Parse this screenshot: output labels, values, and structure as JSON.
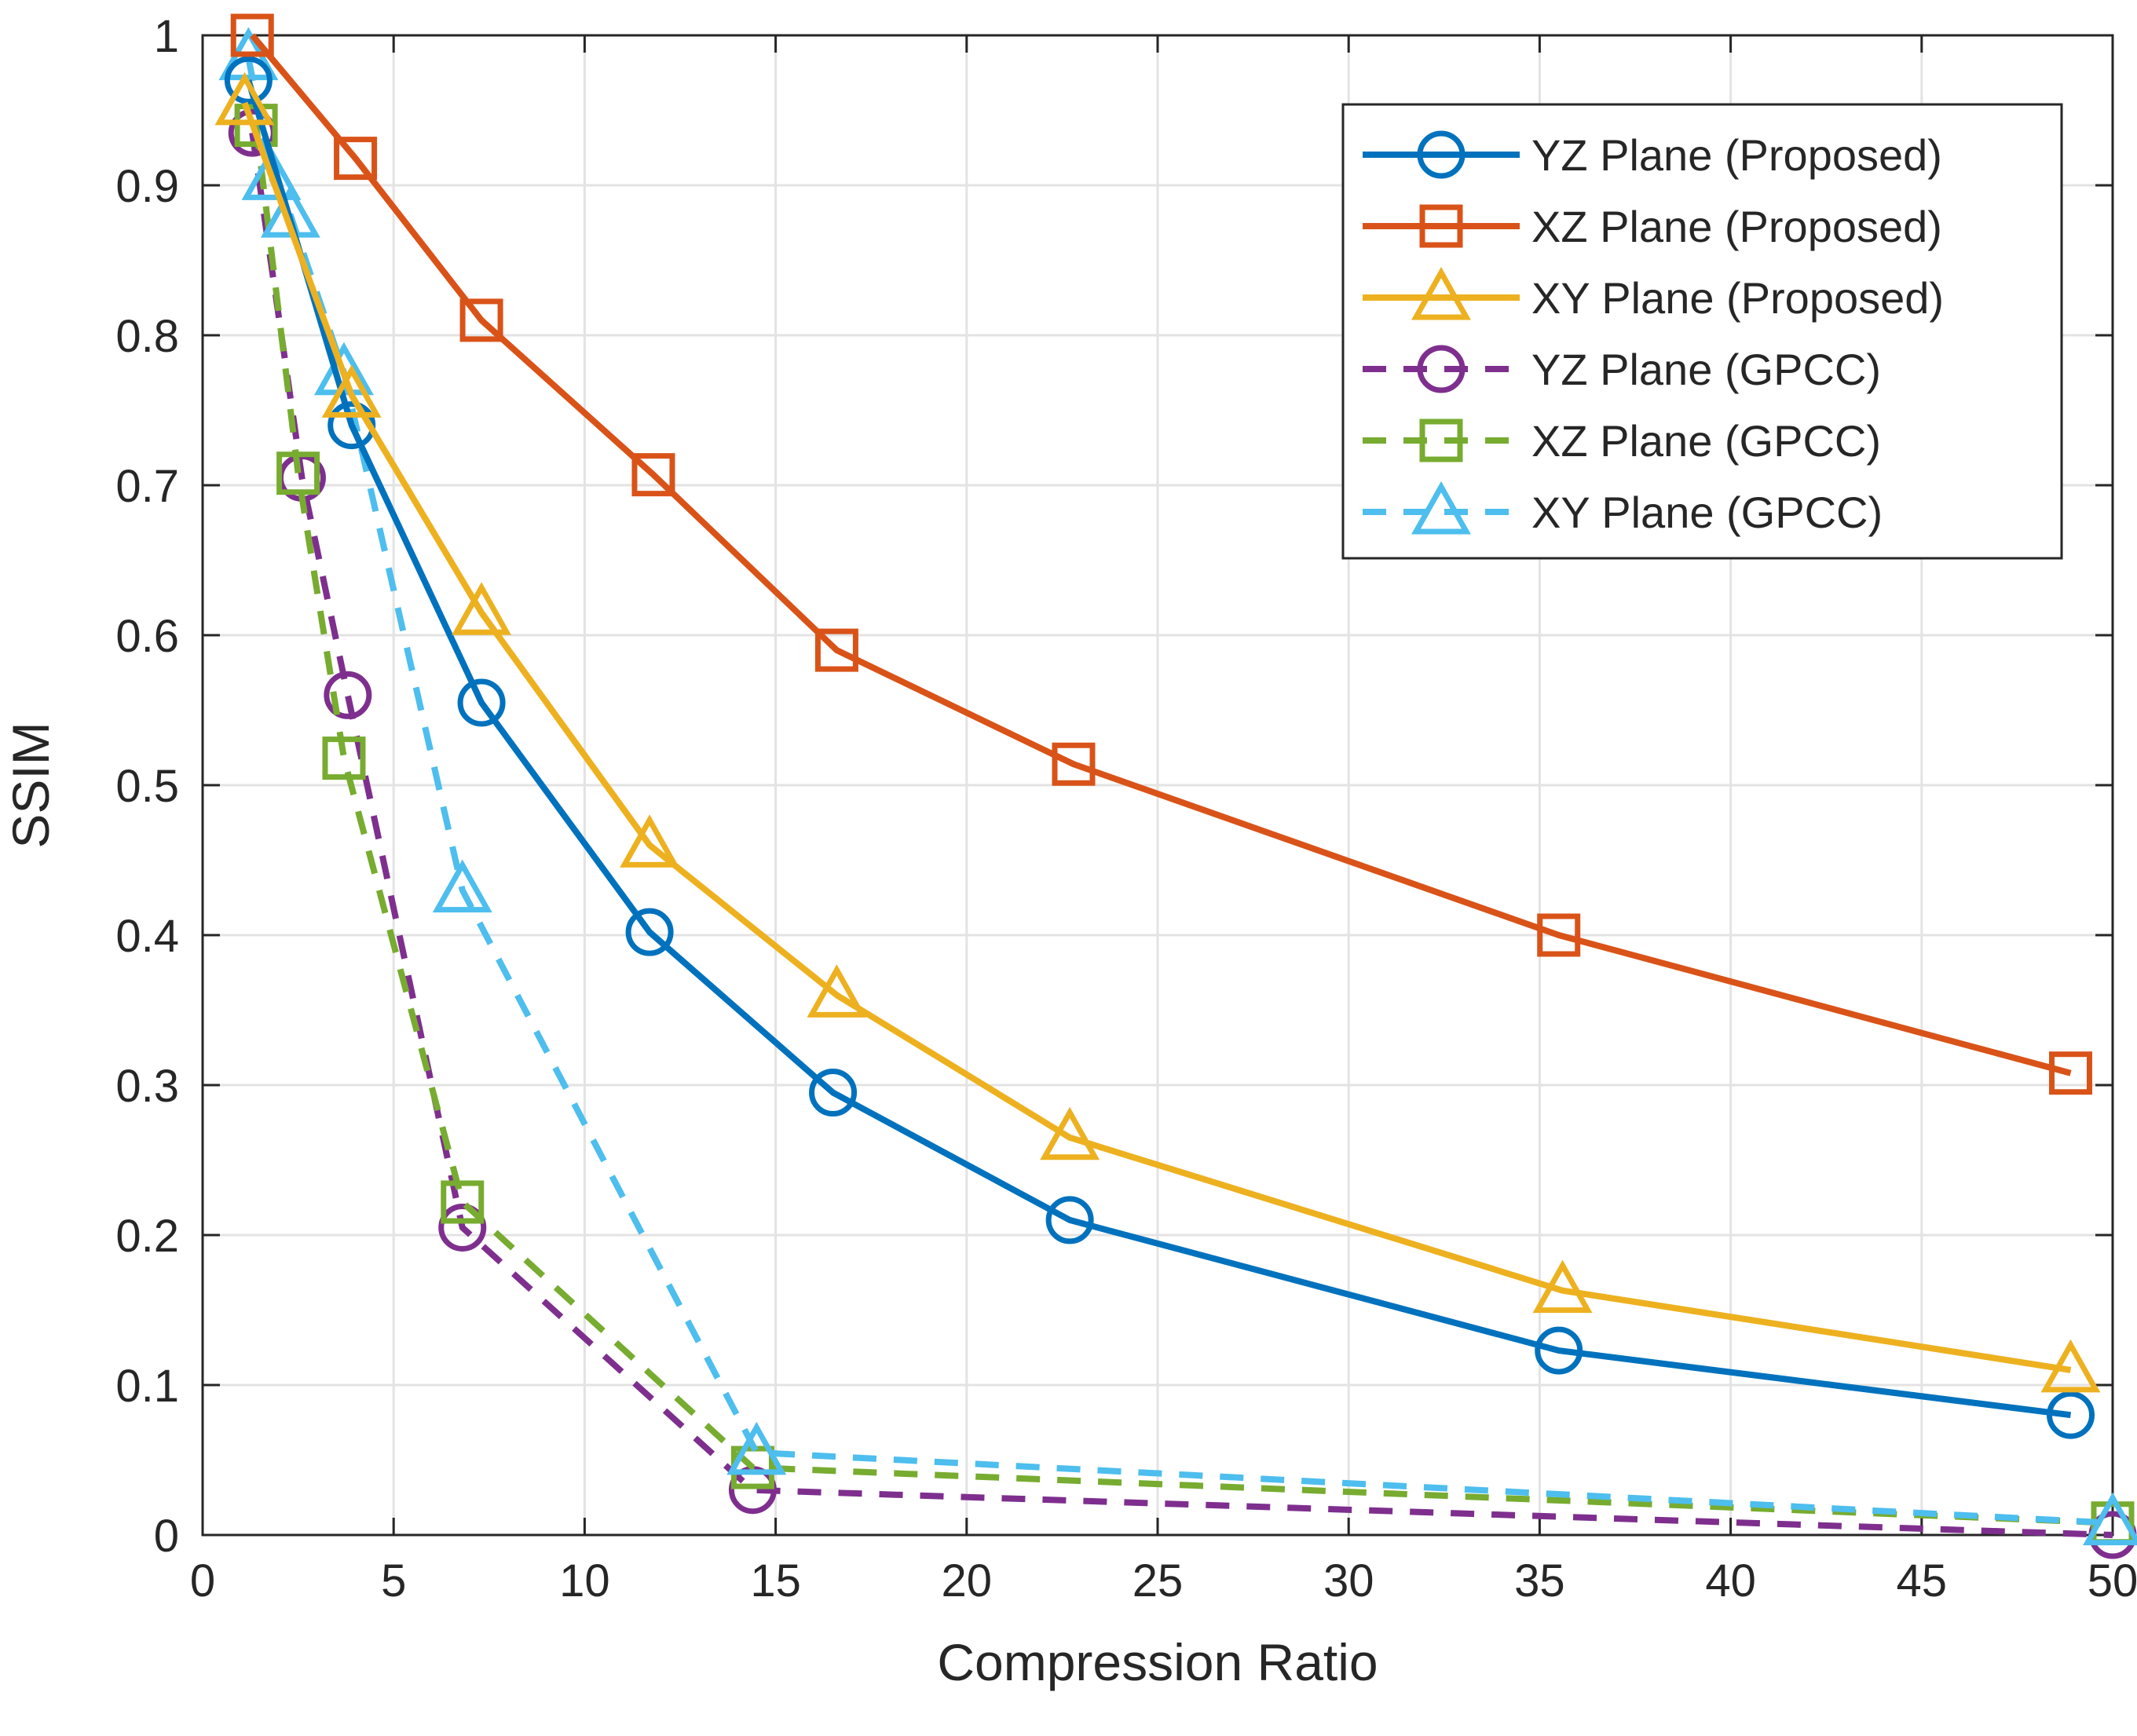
{
  "chart_data": {
    "type": "line",
    "title": "",
    "xlabel": "Compression Ratio",
    "ylabel": "SSIM",
    "xlim": [
      0,
      50
    ],
    "ylim": [
      0,
      1
    ],
    "xticks": [
      0,
      5,
      10,
      15,
      20,
      25,
      30,
      35,
      40,
      45,
      50
    ],
    "yticks": [
      0,
      0.1,
      0.2,
      0.3,
      0.4,
      0.5,
      0.6,
      0.7,
      0.8,
      0.9,
      1
    ],
    "grid": true,
    "legend_position": "top-right",
    "series": [
      {
        "name": "YZ Plane (Proposed)",
        "color": "#0072BD",
        "line_style": "solid",
        "marker": "circle",
        "x": [
          1.2,
          3.9,
          7.3,
          11.7,
          16.5,
          22.7,
          35.5,
          48.9
        ],
        "y": [
          0.97,
          0.74,
          0.555,
          0.402,
          0.295,
          0.21,
          0.123,
          0.08
        ]
      },
      {
        "name": "XZ Plane (Proposed)",
        "color": "#D95319",
        "line_style": "solid",
        "marker": "square",
        "x": [
          1.3,
          4.0,
          7.3,
          11.8,
          16.6,
          22.8,
          35.5,
          48.9
        ],
        "y": [
          1.0,
          0.918,
          0.81,
          0.707,
          0.59,
          0.514,
          0.4,
          0.308
        ]
      },
      {
        "name": "XY Plane (Proposed)",
        "color": "#EDB120",
        "line_style": "solid",
        "marker": "triangle",
        "x": [
          1.1,
          3.9,
          7.3,
          11.7,
          16.6,
          22.7,
          35.6,
          48.9
        ],
        "y": [
          0.955,
          0.76,
          0.615,
          0.46,
          0.36,
          0.265,
          0.163,
          0.11
        ]
      },
      {
        "name": "YZ Plane (GPCC)",
        "color": "#7E2F8E",
        "line_style": "dashed",
        "marker": "circle",
        "x": [
          1.3,
          2.6,
          3.8,
          6.8,
          14.4,
          50
        ],
        "y": [
          0.935,
          0.705,
          0.56,
          0.205,
          0.03,
          0.0
        ]
      },
      {
        "name": "XZ Plane (GPCC)",
        "color": "#77AC30",
        "line_style": "dashed",
        "marker": "square",
        "x": [
          1.4,
          2.5,
          3.7,
          6.8,
          14.4,
          50
        ],
        "y": [
          0.94,
          0.708,
          0.518,
          0.222,
          0.045,
          0.008
        ]
      },
      {
        "name": "XY Plane (GPCC)",
        "color": "#4DBEEE",
        "line_style": "dashed",
        "marker": "triangle",
        "x": [
          1.2,
          1.8,
          2.3,
          3.7,
          6.8,
          14.5,
          50
        ],
        "y": [
          0.985,
          0.905,
          0.88,
          0.775,
          0.43,
          0.055,
          0.008
        ]
      }
    ]
  }
}
